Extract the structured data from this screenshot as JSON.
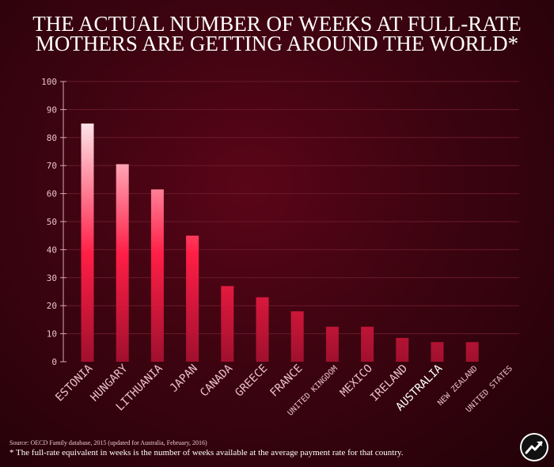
{
  "header": {
    "title_line1": "THE ACTUAL NUMBER OF WEEKS AT FULL-RATE",
    "title_line2": "MOTHERS ARE GETTING AROUND THE WORLD*"
  },
  "footer": {
    "source": "Source: OECD Family database, 2015 (updated for Australia, February, 2016)",
    "footnote": "* The full-rate equivalent in weeks is the number of weeks available at the average payment rate for that country."
  },
  "logo": {
    "icon": "trend-arrow-logo-icon"
  },
  "colors": {
    "bar_top_high": "#fde4e8",
    "bar_mid": "#ff1e46",
    "bar_bottom": "#a0102e",
    "highlight_label": "#ffffff",
    "label": "#e8c0c8",
    "axis": "#d6a8b2"
  },
  "chart_data": {
    "type": "bar",
    "title": "THE ACTUAL NUMBER OF WEEKS AT FULL-RATE MOTHERS ARE GETTING AROUND THE WORLD*",
    "xlabel": "",
    "ylabel": "",
    "ylim": [
      0,
      100
    ],
    "yticks": [
      0,
      10,
      20,
      30,
      40,
      50,
      60,
      70,
      80,
      90,
      100
    ],
    "grid": true,
    "categories": [
      "ESTONIA",
      "HUNGARY",
      "LITHUANIA",
      "JAPAN",
      "CANADA",
      "GREECE",
      "FRANCE",
      "UNITED KINGDOM",
      "MEXICO",
      "IRELAND",
      "AUSTRALIA",
      "NEW ZEALAND",
      "UNITED STATES"
    ],
    "values": [
      85,
      70.5,
      61.5,
      45,
      27,
      23,
      18,
      12.5,
      12.5,
      8.5,
      7,
      7,
      0
    ],
    "highlight": "AUSTRALIA"
  }
}
